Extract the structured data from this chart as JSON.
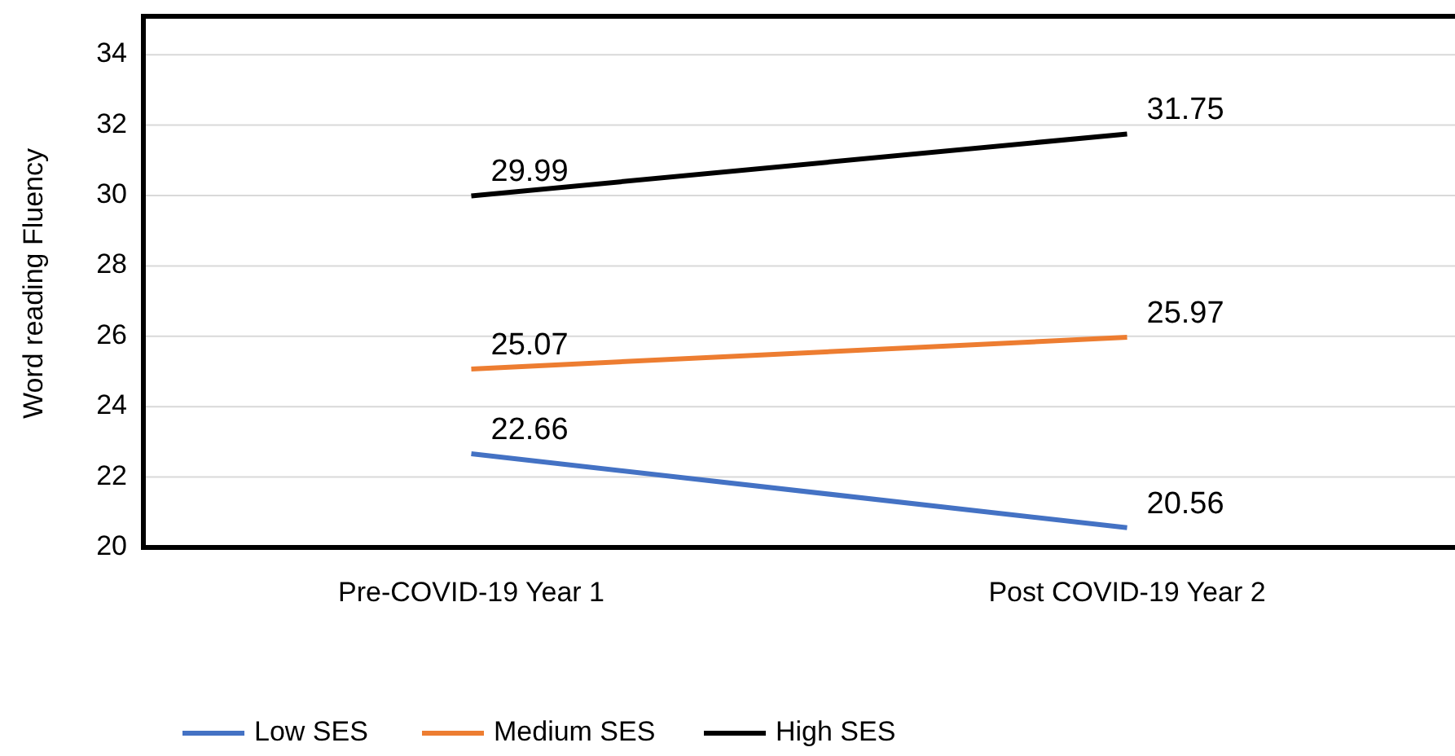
{
  "chart_data": {
    "type": "line",
    "ylabel": "Word reading  Fluency",
    "categories": [
      "Pre-COVID-19 Year 1",
      "Post COVID-19 Year 2"
    ],
    "series": [
      {
        "name": "Low SES",
        "color": "#4472c4",
        "values": [
          22.66,
          20.56
        ]
      },
      {
        "name": "Medium SES",
        "color": "#ed7d31",
        "values": [
          25.07,
          25.97
        ]
      },
      {
        "name": "High SES",
        "color": "#000000",
        "values": [
          29.99,
          31.75
        ]
      }
    ],
    "ylim": [
      20,
      35
    ],
    "yticks": [
      20,
      22,
      24,
      26,
      28,
      30,
      32,
      34
    ],
    "grid": "y",
    "legend": "bottom",
    "data_labels": true,
    "marker": "none",
    "line_style": "solid"
  }
}
